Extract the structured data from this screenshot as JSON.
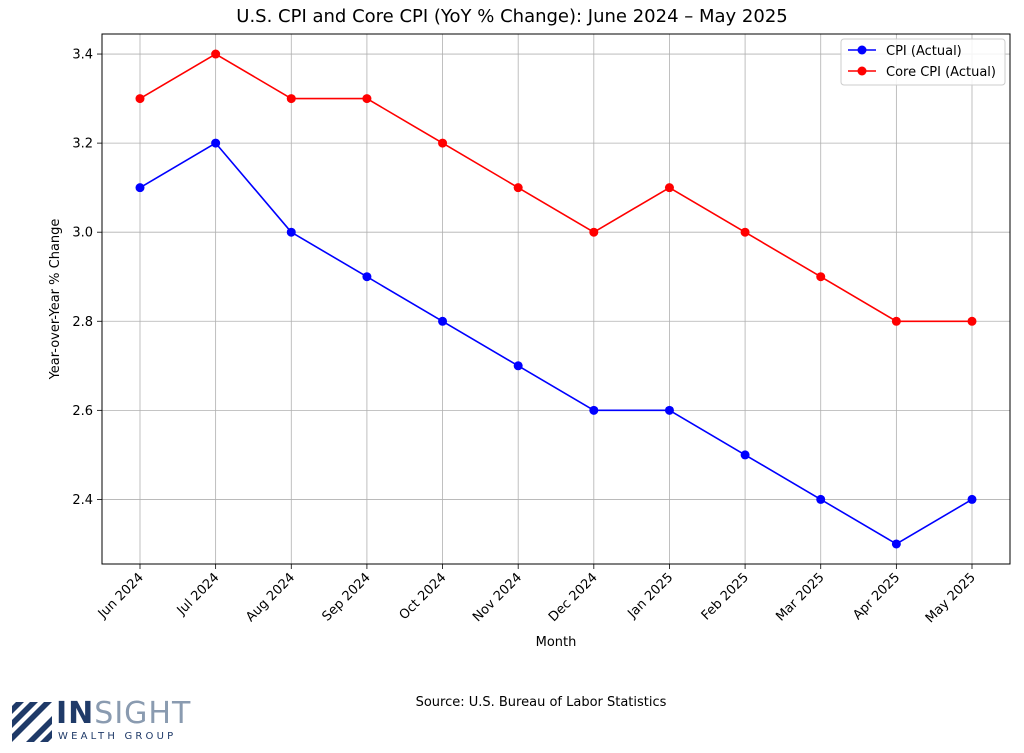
{
  "chart_data": {
    "type": "line",
    "title": "U.S. CPI and Core CPI (YoY % Change): June 2024 – May 2025",
    "xlabel": "Month",
    "ylabel": "Year-over-Year % Change",
    "categories": [
      "Jun 2024",
      "Jul 2024",
      "Aug 2024",
      "Sep 2024",
      "Oct 2024",
      "Nov 2024",
      "Dec 2024",
      "Jan 2025",
      "Feb 2025",
      "Mar 2025",
      "Apr 2025",
      "May 2025"
    ],
    "ylim": [
      2.255,
      3.445
    ],
    "yticks": [
      "2.4",
      "2.6",
      "2.8",
      "3.0",
      "3.2",
      "3.4"
    ],
    "grid": true,
    "legend_position": "top-right",
    "series": [
      {
        "name": "CPI (Actual)",
        "color": "#0000ff",
        "marker": "circle",
        "values": [
          3.1,
          3.2,
          3.0,
          2.9,
          2.8,
          2.7,
          2.6,
          2.6,
          2.5,
          2.4,
          2.3,
          2.4
        ]
      },
      {
        "name": "Core CPI (Actual)",
        "color": "#ff0000",
        "marker": "circle",
        "values": [
          3.3,
          3.4,
          3.3,
          3.3,
          3.2,
          3.1,
          3.0,
          3.1,
          3.0,
          2.9,
          2.8,
          2.8
        ]
      }
    ]
  },
  "footer": {
    "source": "Source: U.S. Bureau of Labor Statistics"
  },
  "logo": {
    "name_part1": "IN",
    "name_part2": "SIGHT",
    "tagline": "WEALTH GROUP",
    "primary_color": "#1f3a68",
    "secondary_color": "#8a9bb0"
  }
}
